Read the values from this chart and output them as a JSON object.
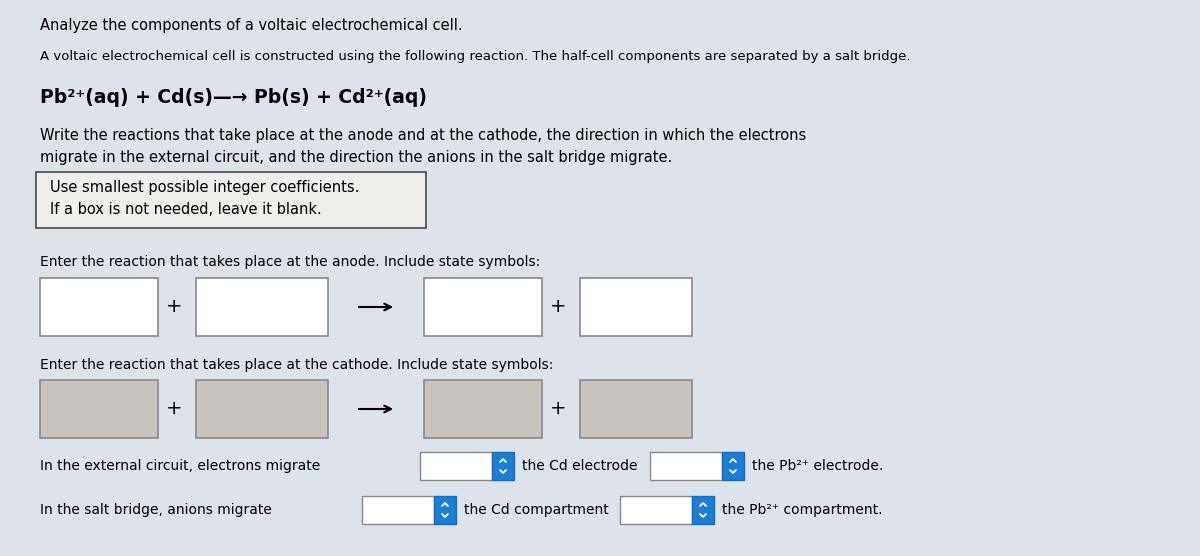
{
  "background_color": "#dde3ea",
  "title_text": "Analyze the components of a voltaic electrochemical cell.",
  "subtitle_text": "A voltaic electrochemical cell is constructed using the following reaction. The half-cell components are separated by a salt bridge.",
  "reaction_text": "Pb²⁺(aq) + Cd(s)—→ Pb(s) + Cd²⁺(aq)",
  "write_line1": "Write the reactions that take place at the anode and at the cathode, the direction in which the electrons",
  "write_line2": "migrate in the external circuit, and the direction the anions in the salt bridge migrate.",
  "box_line1": "Use smallest possible integer coefficients.",
  "box_line2": "If a box is not needed, leave it blank.",
  "anode_label": "Enter the reaction that takes place at the anode. Include state symbols:",
  "cathode_label": "Enter the reaction that takes place at the cathode. Include state symbols:",
  "external_text1": "In the external circuit, electrons migrate",
  "external_text2": "the Cd electrode",
  "external_text3": "the Pb²⁺ electrode.",
  "saltbridge_text1": "In the salt bridge, anions migrate",
  "saltbridge_text2": "the Cd compartment",
  "saltbridge_text3": "the Pb²⁺ compartment.",
  "dropdown_color": "#1a7fd4",
  "dropdown_border": "#1a6ab8",
  "white_box_color": "#ffffff",
  "shaded_box_color": "#c8c4bc",
  "instr_box_color": "#f0eeeb"
}
